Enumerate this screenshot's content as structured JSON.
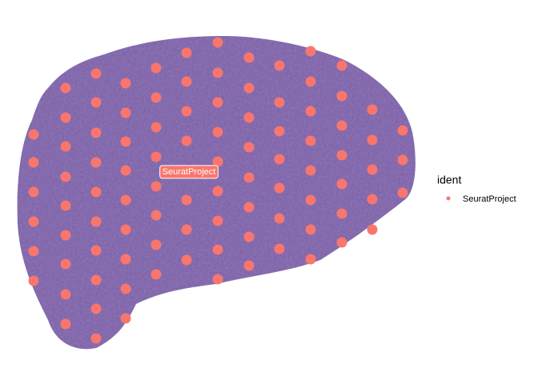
{
  "chart_data": {
    "type": "scatter",
    "legend_title": "ident",
    "legend_position": "right",
    "series": [
      {
        "name": "SeuratProject",
        "color": "#f8766d",
        "x": [
          42,
          42,
          42,
          42,
          42,
          42,
          82,
          82,
          82,
          82,
          82,
          82,
          82,
          82,
          82,
          120,
          120,
          120,
          120,
          120,
          120,
          120,
          120,
          120,
          120,
          157,
          157,
          157,
          157,
          157,
          157,
          157,
          157,
          157,
          195,
          195,
          195,
          195,
          195,
          195,
          195,
          195,
          233,
          233,
          233,
          233,
          233,
          233,
          233,
          272,
          272,
          272,
          272,
          272,
          272,
          272,
          272,
          272,
          311,
          311,
          311,
          311,
          311,
          311,
          311,
          311,
          349,
          349,
          349,
          349,
          349,
          349,
          349,
          388,
          388,
          388,
          388,
          388,
          388,
          388,
          388,
          427,
          427,
          427,
          427,
          427,
          427,
          427,
          465,
          465,
          465,
          465,
          465,
          503,
          503,
          503
        ],
        "y": [
          168,
          203,
          240,
          277,
          314,
          351,
          110,
          147,
          183,
          221,
          257,
          294,
          330,
          368,
          405,
          92,
          128,
          166,
          203,
          240,
          277,
          313,
          350,
          386,
          423,
          104,
          141,
          177,
          213,
          250,
          287,
          324,
          361,
          398,
          85,
          122,
          159,
          196,
          233,
          269,
          306,
          343,
          66,
          102,
          139,
          176,
          250,
          287,
          325,
          53,
          91,
          128,
          165,
          202,
          239,
          276,
          312,
          349,
          72,
          110,
          147,
          184,
          222,
          259,
          296,
          332,
          82,
          128,
          164,
          199,
          235,
          273,
          311,
          64,
          102,
          139,
          176,
          213,
          250,
          287,
          324,
          82,
          120,
          157,
          194,
          230,
          267,
          303,
          137,
          175,
          212,
          249,
          287,
          163,
          200,
          241
        ]
      }
    ]
  }
}
